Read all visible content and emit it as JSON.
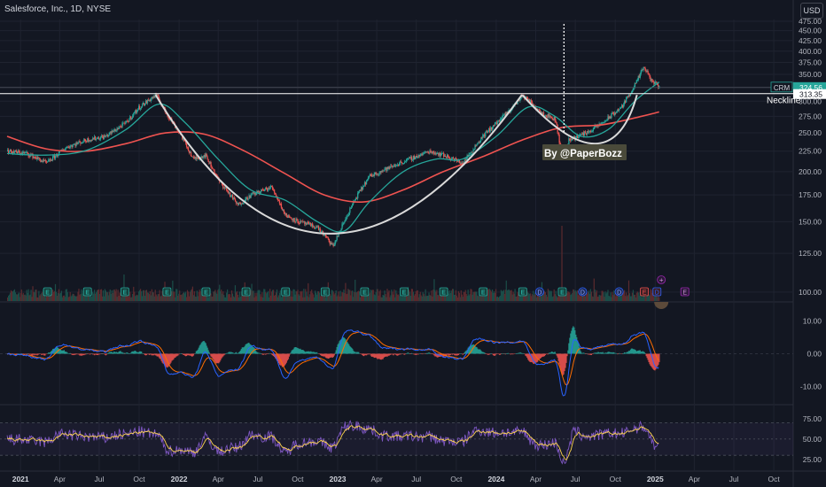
{
  "header": {
    "title": "Salesforce, Inc., 1D, NYSE",
    "currency": "USD"
  },
  "labels": {
    "watermark": "By @PaperBozz",
    "neckline": "Neckline",
    "symbol": "CRM",
    "last_price": "324.56",
    "neckline_price": "313.35"
  },
  "colors": {
    "background": "#131722",
    "grid": "#1f2330",
    "axis_text": "#b2b5be",
    "price": "#b2b5be",
    "ma_fast": "#26a69a",
    "ma_slow": "#ef5350",
    "cup_curve": "#d9d9d9",
    "macd": "#2962ff",
    "signal": "#ff6d00",
    "hist_up": "#26a69a",
    "hist_down": "#ef5350",
    "rsi": "#7e57c2",
    "rsi_ma": "#ffd54f",
    "earnings": "#26a69a",
    "dividend": "#2962ff",
    "event_future": "#9c27b0"
  },
  "chart_data": [
    {
      "type": "line",
      "pane": "price",
      "title": "Salesforce, Inc., 1D, NYSE",
      "x_ticks": [
        "2021",
        "Apr",
        "Jul",
        "Oct",
        "2022",
        "Apr",
        "Jul",
        "Oct",
        "2023",
        "Apr",
        "Jul",
        "Oct",
        "2024",
        "Apr",
        "Jul",
        "Oct",
        "2025",
        "Apr",
        "Jul",
        "Oct"
      ],
      "y_ticks": [
        100,
        125,
        150,
        175,
        200,
        225,
        250,
        275,
        300,
        325,
        350,
        375,
        400,
        425,
        450,
        475
      ],
      "ylim": [
        95,
        480
      ],
      "scale": "log",
      "neckline": 313.35,
      "last": 324.56,
      "series": [
        {
          "role": "price",
          "points": [
            [
              "2020-12-01",
              225
            ],
            [
              "2021-01-15",
              222
            ],
            [
              "2021-03-01",
              210
            ],
            [
              "2021-04-15",
              230
            ],
            [
              "2021-06-01",
              240
            ],
            [
              "2021-07-15",
              245
            ],
            [
              "2021-08-31",
              265
            ],
            [
              "2021-10-01",
              290
            ],
            [
              "2021-11-08",
              311
            ],
            [
              "2021-12-01",
              280
            ],
            [
              "2022-01-01",
              250
            ],
            [
              "2022-02-01",
              215
            ],
            [
              "2022-03-01",
              220
            ],
            [
              "2022-04-01",
              190
            ],
            [
              "2022-05-15",
              165
            ],
            [
              "2022-06-15",
              175
            ],
            [
              "2022-08-01",
              183
            ],
            [
              "2022-09-01",
              156
            ],
            [
              "2022-10-01",
              150
            ],
            [
              "2022-11-15",
              145
            ],
            [
              "2022-12-20",
              130
            ],
            [
              "2023-01-15",
              150
            ],
            [
              "2023-02-15",
              175
            ],
            [
              "2023-03-15",
              195
            ],
            [
              "2023-05-01",
              205
            ],
            [
              "2023-06-15",
              215
            ],
            [
              "2023-07-31",
              225
            ],
            [
              "2023-09-01",
              220
            ],
            [
              "2023-10-15",
              210
            ],
            [
              "2023-11-30",
              245
            ],
            [
              "2024-01-01",
              265
            ],
            [
              "2024-02-01",
              285
            ],
            [
              "2024-03-01",
              310
            ],
            [
              "2024-04-15",
              280
            ],
            [
              "2024-05-15",
              270
            ],
            [
              "2024-05-31",
              215
            ],
            [
              "2024-06-15",
              240
            ],
            [
              "2024-08-01",
              252
            ],
            [
              "2024-09-01",
              265
            ],
            [
              "2024-10-15",
              290
            ],
            [
              "2024-11-15",
              330
            ],
            [
              "2024-12-05",
              365
            ],
            [
              "2024-12-20",
              340
            ],
            [
              "2025-01-10",
              324.56
            ]
          ]
        },
        {
          "role": "moving average (fast)",
          "points": [
            [
              "2020-12-01",
              222
            ],
            [
              "2021-03-01",
              220
            ],
            [
              "2021-06-01",
              226
            ],
            [
              "2021-09-01",
              255
            ],
            [
              "2021-11-15",
              295
            ],
            [
              "2022-01-15",
              265
            ],
            [
              "2022-04-01",
              215
            ],
            [
              "2022-06-15",
              180
            ],
            [
              "2022-09-01",
              170
            ],
            [
              "2022-11-15",
              150
            ],
            [
              "2023-01-15",
              142
            ],
            [
              "2023-03-15",
              168
            ],
            [
              "2023-06-01",
              200
            ],
            [
              "2023-08-15",
              215
            ],
            [
              "2023-10-15",
              215
            ],
            [
              "2024-01-01",
              245
            ],
            [
              "2024-03-15",
              290
            ],
            [
              "2024-05-15",
              275
            ],
            [
              "2024-07-15",
              245
            ],
            [
              "2024-09-15",
              255
            ],
            [
              "2024-11-15",
              300
            ],
            [
              "2025-01-10",
              335
            ]
          ]
        },
        {
          "role": "moving average (slow)",
          "points": [
            [
              "2020-12-01",
              245
            ],
            [
              "2021-03-01",
              228
            ],
            [
              "2021-06-01",
              225
            ],
            [
              "2021-09-01",
              235
            ],
            [
              "2021-12-01",
              250
            ],
            [
              "2022-03-01",
              248
            ],
            [
              "2022-06-01",
              225
            ],
            [
              "2022-09-01",
              198
            ],
            [
              "2022-12-01",
              175
            ],
            [
              "2023-03-01",
              168
            ],
            [
              "2023-06-01",
              180
            ],
            [
              "2023-09-01",
              200
            ],
            [
              "2023-12-01",
              218
            ],
            [
              "2024-03-01",
              240
            ],
            [
              "2024-06-01",
              258
            ],
            [
              "2024-09-01",
              262
            ],
            [
              "2024-12-01",
              275
            ],
            [
              "2025-01-10",
              282
            ]
          ]
        }
      ],
      "annotations": [
        {
          "type": "horizontal_line",
          "y": 313.35,
          "label": "Neckline"
        },
        {
          "type": "vertical_dotted_line",
          "x": "2024-06-05"
        },
        {
          "type": "curve",
          "shape": "cup",
          "points": [
            [
              "2021-11-08",
              311
            ],
            [
              "2022-12-15",
              140
            ],
            [
              "2024-02-29",
              311
            ]
          ]
        },
        {
          "type": "curve",
          "shape": "handle",
          "points": [
            [
              "2024-03-01",
              311
            ],
            [
              "2024-08-15",
              235
            ],
            [
              "2024-11-20",
              311
            ]
          ]
        }
      ]
    },
    {
      "type": "line",
      "pane": "macd",
      "y_ticks": [
        -10,
        0,
        10
      ],
      "ylim": [
        -15,
        15
      ],
      "series": [
        {
          "role": "macd",
          "values_note": "oscillates between about -10 and +12"
        },
        {
          "role": "signal"
        },
        {
          "role": "histogram"
        }
      ]
    },
    {
      "type": "line",
      "pane": "rsi",
      "y_ticks": [
        25,
        50,
        75
      ],
      "ylim": [
        15,
        90
      ],
      "bands": [
        30,
        50,
        70
      ],
      "series": [
        {
          "role": "rsi"
        },
        {
          "role": "rsi moving average"
        }
      ]
    }
  ]
}
